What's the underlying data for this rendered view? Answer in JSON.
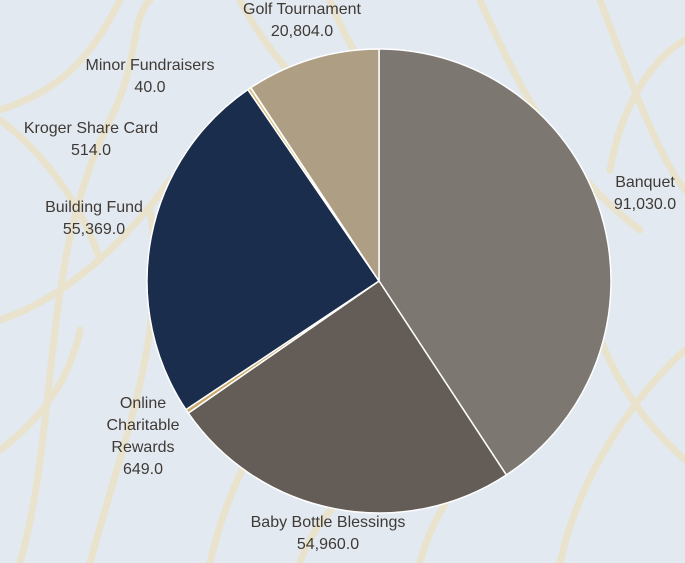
{
  "chart_data": {
    "type": "pie",
    "title": "",
    "start_angle_deg": 0,
    "direction": "clockwise",
    "categories": [
      "Banquet",
      "Baby Bottle Blessings",
      "Online Charitable Rewards",
      "Building Fund",
      "Kroger Share Card",
      "Minor Fundraisers",
      "Golf Tournament"
    ],
    "label_lines": [
      [
        "Banquet"
      ],
      [
        "Baby Bottle Blessings"
      ],
      [
        "Online",
        "Charitable",
        "Rewards"
      ],
      [
        "Building Fund"
      ],
      [
        "Kroger Share Card"
      ],
      [
        "Minor Fundraisers"
      ],
      [
        "Golf Tournament"
      ]
    ],
    "values": [
      91030.0,
      54960.0,
      649.0,
      55369.0,
      514.0,
      40.0,
      20804.0
    ],
    "value_labels": [
      "91,030.0",
      "54,960.0",
      "649.0",
      "55,369.0",
      "514.0",
      "40.0",
      "20,804.0"
    ],
    "colors": [
      "#7d7771",
      "#645d57",
      "#c9a96a",
      "#1b2d4c",
      "#d8c07e",
      "#e6cf7d",
      "#ae9e84"
    ],
    "legend": "none",
    "data_labels": "outside"
  }
}
